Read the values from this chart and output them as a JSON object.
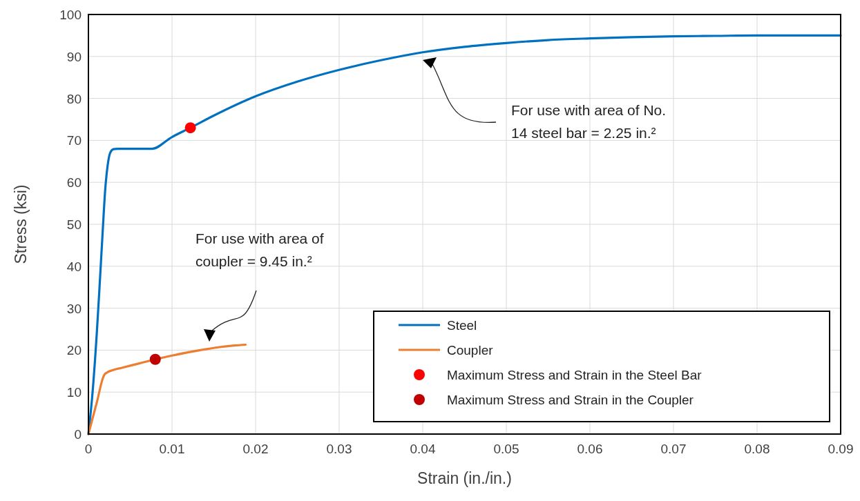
{
  "chart_data": {
    "type": "line",
    "xlabel": "Strain (in./in.)",
    "ylabel": "Stress (ksi)",
    "xlim": [
      0,
      0.09
    ],
    "xticks": [
      0,
      0.01,
      0.02,
      0.03,
      0.04,
      0.05,
      0.06,
      0.07,
      0.08,
      0.09
    ],
    "ylim": [
      0,
      100
    ],
    "yticks": [
      0,
      10,
      20,
      30,
      40,
      50,
      60,
      70,
      80,
      90,
      100
    ],
    "grid": true,
    "legend": "bottom right",
    "series": [
      {
        "name": "Steel",
        "color": "#0070c0",
        "x": [
          0,
          0.0005,
          0.001,
          0.0013,
          0.0017,
          0.002,
          0.0023,
          0.0026,
          0.003,
          0.0035,
          0.005,
          0.0076,
          0.01,
          0.0122,
          0.015,
          0.02,
          0.025,
          0.03,
          0.035,
          0.04,
          0.045,
          0.05,
          0.055,
          0.06,
          0.065,
          0.07,
          0.075,
          0.08,
          0.085,
          0.09
        ],
        "values": [
          0,
          10,
          24,
          34,
          48,
          58,
          64,
          67,
          67.9,
          68,
          68,
          68,
          70.8,
          73,
          75.9,
          80.5,
          84,
          86.8,
          89.1,
          91,
          92.3,
          93.2,
          93.9,
          94.3,
          94.6,
          94.8,
          94.9,
          95,
          95,
          95
        ]
      },
      {
        "name": "Coupler",
        "color": "#ed7d31",
        "x": [
          0,
          0.001,
          0.0018,
          0.002,
          0.003,
          0.004,
          0.006,
          0.008,
          0.01,
          0.012,
          0.014,
          0.016,
          0.0175,
          0.0188
        ],
        "values": [
          0,
          7.5,
          13.7,
          14.4,
          15.3,
          15.8,
          16.8,
          17.8,
          18.7,
          19.5,
          20.2,
          20.8,
          21.1,
          21.3
        ]
      },
      {
        "name": "Maximum Stress and Strain in the Steel Bar",
        "type": "scatter",
        "marker": "circle",
        "color": "#ff0000",
        "x": [
          0.0122
        ],
        "values": [
          73
        ]
      },
      {
        "name": "Maximum Stress and Strain in the Coupler",
        "type": "scatter",
        "marker": "circle",
        "color": "#c00000",
        "x": [
          0.008
        ],
        "values": [
          17.8
        ]
      }
    ],
    "annotations": [
      "For use with area of No.\n14 steel bar = 2.25 in.²",
      "For use with area of\ncoupler = 9.45 in.²"
    ]
  }
}
